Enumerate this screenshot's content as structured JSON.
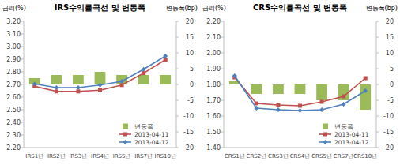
{
  "chart_data": [
    {
      "type": "bar",
      "title": "IRS수익률곡선 및 변동폭",
      "ylabel": "금리(%)",
      "y2label": "변동폭(bp)",
      "categories": [
        "IRS1년",
        "IRS2년",
        "IRS3년",
        "IRS4년",
        "IRS5년",
        "IRS7년",
        "IRS10년"
      ],
      "series": [
        {
          "name": "변동폭",
          "type": "bar",
          "axis": "y2",
          "color": "#9bbb59",
          "values": [
            2,
            3,
            3,
            4,
            3,
            3,
            3
          ]
        },
        {
          "name": "2013-04-11",
          "type": "line",
          "color": "#c0504d",
          "marker": "square",
          "values": [
            2.685,
            2.645,
            2.645,
            2.655,
            2.695,
            2.79,
            2.895
          ]
        },
        {
          "name": "2013-04-12",
          "type": "line",
          "color": "#4f81bd",
          "marker": "diamond",
          "values": [
            2.705,
            2.675,
            2.675,
            2.695,
            2.725,
            2.82,
            2.925
          ]
        }
      ],
      "ylim": [
        2.2,
        3.2
      ],
      "yticks": [
        {
          "value": 2.2,
          "label": "2.20"
        },
        {
          "value": 2.3,
          "label": "2.30"
        },
        {
          "value": 2.4,
          "label": "2.40"
        },
        {
          "value": 2.5,
          "label": "2.50"
        },
        {
          "value": 2.6,
          "label": "2.60"
        },
        {
          "value": 2.7,
          "label": "2.70"
        },
        {
          "value": 2.8,
          "label": "2.80"
        },
        {
          "value": 2.9,
          "label": "2.90"
        },
        {
          "value": 3.0,
          "label": "3.00"
        },
        {
          "value": 3.1,
          "label": "3.10"
        },
        {
          "value": 3.2,
          "label": "3.20"
        }
      ],
      "y2lim": [
        -20,
        20
      ],
      "y2ticks": [
        -20,
        -15,
        -10,
        -5,
        0,
        5,
        10,
        15,
        20
      ],
      "grid": false,
      "legend": "lower right"
    },
    {
      "type": "bar",
      "title": "CRS수익률곡선 및 변동폭",
      "ylabel": "금리(%)",
      "y2label": "변동폭(bp)",
      "categories": [
        "CRS1년",
        "CRS2년",
        "CRS3년",
        "CRS4년",
        "CRS5년",
        "CRS7년",
        "CRS10년"
      ],
      "series": [
        {
          "name": "변동폭",
          "type": "bar",
          "axis": "y2",
          "color": "#9bbb59",
          "values": [
            1,
            -3,
            -3,
            -3,
            -5,
            -5,
            -8
          ]
        },
        {
          "name": "2013-04-11",
          "type": "line",
          "color": "#c0504d",
          "marker": "square",
          "values": [
            1.845,
            1.68,
            1.67,
            1.665,
            1.69,
            1.725,
            1.84
          ]
        },
        {
          "name": "2013-04-12",
          "type": "line",
          "color": "#4f81bd",
          "marker": "diamond",
          "values": [
            1.855,
            1.65,
            1.64,
            1.635,
            1.64,
            1.675,
            1.76
          ]
        }
      ],
      "ylim": [
        1.4,
        2.2
      ],
      "yticks": [
        {
          "value": 1.4,
          "label": "1.40"
        },
        {
          "value": 1.5,
          "label": "1.50"
        },
        {
          "value": 1.6,
          "label": "1.60"
        },
        {
          "value": 1.7,
          "label": "1.70"
        },
        {
          "value": 1.8,
          "label": "1.80"
        },
        {
          "value": 1.9,
          "label": "1.90"
        },
        {
          "value": 2.0,
          "label": "2.00"
        },
        {
          "value": 2.1,
          "label": "2.10"
        },
        {
          "value": 2.2,
          "label": "2.20"
        }
      ],
      "y2lim": [
        -20,
        20
      ],
      "y2ticks": [
        -20,
        -15,
        -10,
        -5,
        0,
        5,
        10,
        15,
        20
      ],
      "grid": false,
      "legend": "lower right"
    }
  ]
}
